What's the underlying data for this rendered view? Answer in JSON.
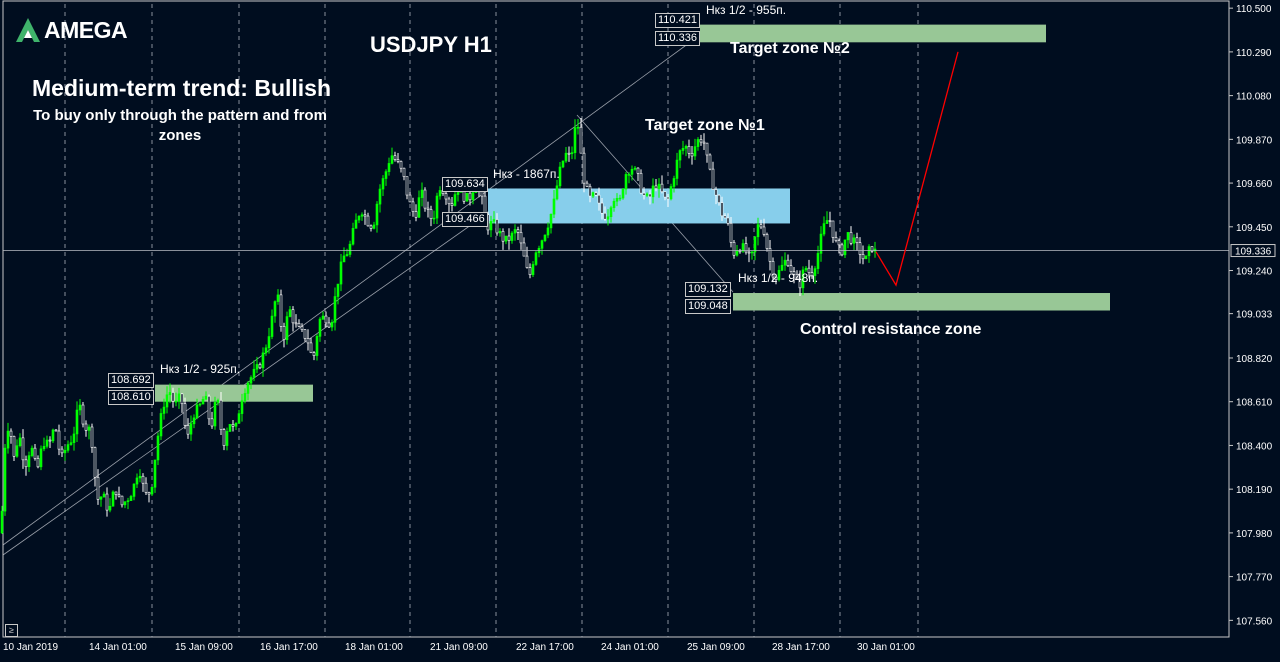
{
  "chart_data": {
    "type": "candlestick",
    "title": "USDJPY H1",
    "symbol": "USDJPY",
    "timeframe": "H1",
    "ylim": [
      107.48,
      110.52
    ],
    "y_ticks": [
      "110.500",
      "110.290",
      "110.080",
      "109.870",
      "109.660",
      "109.450",
      "109.240",
      "109.033",
      "108.820",
      "108.610",
      "108.400",
      "108.190",
      "107.980",
      "107.770",
      "107.560"
    ],
    "x_ticks": [
      "10 Jan 2019",
      "14 Jan 01:00",
      "15 Jan 09:00",
      "16 Jan 17:00",
      "18 Jan 01:00",
      "21 Jan 09:00",
      "22 Jan 17:00",
      "24 Jan 01:00",
      "25 Jan 09:00",
      "28 Jan 17:00",
      "30 Jan 01:00"
    ],
    "current_price": "109.336",
    "bull_color": "#00ff00",
    "bear_color": "#ffffff",
    "price_path": [
      [
        0,
        107.98
      ],
      [
        4,
        108.4
      ],
      [
        8,
        108.52
      ],
      [
        13,
        108.34
      ],
      [
        18,
        108.46
      ],
      [
        24,
        108.3
      ],
      [
        30,
        108.4
      ],
      [
        36,
        108.27
      ],
      [
        42,
        108.42
      ],
      [
        48,
        108.4
      ],
      [
        54,
        108.5
      ],
      [
        60,
        108.33
      ],
      [
        66,
        108.4
      ],
      [
        72,
        108.44
      ],
      [
        78,
        108.6
      ],
      [
        84,
        108.49
      ],
      [
        90,
        108.47
      ],
      [
        96,
        108.14
      ],
      [
        102,
        108.16
      ],
      [
        108,
        108.08
      ],
      [
        114,
        108.2
      ],
      [
        120,
        108.11
      ],
      [
        126,
        108.14
      ],
      [
        132,
        108.19
      ],
      [
        138,
        108.3
      ],
      [
        144,
        108.16
      ],
      [
        150,
        108.18
      ],
      [
        156,
        108.42
      ],
      [
        162,
        108.59
      ],
      [
        168,
        108.67
      ],
      [
        174,
        108.59
      ],
      [
        180,
        108.64
      ],
      [
        186,
        108.42
      ],
      [
        192,
        108.55
      ],
      [
        198,
        108.58
      ],
      [
        204,
        108.64
      ],
      [
        210,
        108.48
      ],
      [
        216,
        108.64
      ],
      [
        222,
        108.4
      ],
      [
        228,
        108.52
      ],
      [
        234,
        108.46
      ],
      [
        240,
        108.62
      ],
      [
        246,
        108.7
      ],
      [
        252,
        108.74
      ],
      [
        258,
        108.78
      ],
      [
        264,
        108.86
      ],
      [
        270,
        108.98
      ],
      [
        276,
        109.14
      ],
      [
        282,
        108.9
      ],
      [
        288,
        109.06
      ],
      [
        294,
        108.98
      ],
      [
        300,
        108.94
      ],
      [
        306,
        108.92
      ],
      [
        312,
        108.8
      ],
      [
        318,
        109.0
      ],
      [
        324,
        109.02
      ],
      [
        330,
        108.98
      ],
      [
        336,
        109.17
      ],
      [
        342,
        109.3
      ],
      [
        348,
        109.34
      ],
      [
        354,
        109.46
      ],
      [
        360,
        109.54
      ],
      [
        366,
        109.48
      ],
      [
        372,
        109.45
      ],
      [
        378,
        109.62
      ],
      [
        384,
        109.7
      ],
      [
        390,
        109.8
      ],
      [
        396,
        109.76
      ],
      [
        402,
        109.7
      ],
      [
        408,
        109.57
      ],
      [
        414,
        109.5
      ],
      [
        420,
        109.62
      ],
      [
        426,
        109.52
      ],
      [
        432,
        109.48
      ],
      [
        438,
        109.65
      ],
      [
        444,
        109.62
      ],
      [
        450,
        109.55
      ],
      [
        456,
        109.64
      ],
      [
        462,
        109.6
      ],
      [
        468,
        109.58
      ],
      [
        474,
        109.66
      ],
      [
        480,
        109.6
      ],
      [
        486,
        109.45
      ],
      [
        492,
        109.47
      ],
      [
        498,
        109.42
      ],
      [
        504,
        109.38
      ],
      [
        510,
        109.4
      ],
      [
        516,
        109.44
      ],
      [
        522,
        109.32
      ],
      [
        528,
        109.2
      ],
      [
        534,
        109.33
      ],
      [
        540,
        109.38
      ],
      [
        546,
        109.45
      ],
      [
        552,
        109.54
      ],
      [
        558,
        109.7
      ],
      [
        564,
        109.8
      ],
      [
        570,
        109.78
      ],
      [
        576,
        109.98
      ],
      [
        582,
        109.7
      ],
      [
        588,
        109.58
      ],
      [
        594,
        109.6
      ],
      [
        600,
        109.52
      ],
      [
        606,
        109.5
      ],
      [
        612,
        109.6
      ],
      [
        618,
        109.55
      ],
      [
        624,
        109.7
      ],
      [
        630,
        109.74
      ],
      [
        636,
        109.7
      ],
      [
        642,
        109.6
      ],
      [
        648,
        109.58
      ],
      [
        654,
        109.66
      ],
      [
        660,
        109.62
      ],
      [
        666,
        109.56
      ],
      [
        672,
        109.68
      ],
      [
        678,
        109.8
      ],
      [
        684,
        109.84
      ],
      [
        690,
        109.8
      ],
      [
        696,
        109.86
      ],
      [
        702,
        109.88
      ],
      [
        708,
        109.72
      ],
      [
        714,
        109.62
      ],
      [
        720,
        109.52
      ],
      [
        726,
        109.48
      ],
      [
        732,
        109.32
      ],
      [
        738,
        109.36
      ],
      [
        744,
        109.34
      ],
      [
        750,
        109.28
      ],
      [
        756,
        109.45
      ],
      [
        762,
        109.46
      ],
      [
        768,
        109.3
      ],
      [
        774,
        109.2
      ],
      [
        780,
        109.25
      ],
      [
        786,
        109.3
      ],
      [
        792,
        109.22
      ],
      [
        798,
        109.16
      ],
      [
        804,
        109.26
      ],
      [
        810,
        109.22
      ],
      [
        816,
        109.3
      ],
      [
        822,
        109.44
      ],
      [
        828,
        109.5
      ],
      [
        834,
        109.38
      ],
      [
        840,
        109.32
      ],
      [
        846,
        109.42
      ],
      [
        852,
        109.38
      ],
      [
        858,
        109.34
      ],
      [
        864,
        109.28
      ],
      [
        870,
        109.36
      ],
      [
        874,
        109.33
      ]
    ],
    "zones": [
      {
        "name": "target-zone-2",
        "upper": "110.421",
        "lower": "110.336",
        "note": "Нкз 1/2 - 955п.",
        "label": "Target zone №2",
        "color": "#98c796"
      },
      {
        "name": "target-zone-1",
        "upper": "109.634",
        "lower": "109.466",
        "note": "Нкз - 1867п.",
        "label": "Target zone №1",
        "color": "#87ceeb"
      },
      {
        "name": "control-zone",
        "upper": "109.132",
        "lower": "109.048",
        "note": "Нкз 1/2 - 948п.",
        "label": "Control resistance zone",
        "color": "#98c796"
      },
      {
        "name": "support-zone",
        "upper": "108.692",
        "lower": "108.610",
        "note": "Нкз 1/2 - 925п.",
        "label": "",
        "color": "#98c796"
      }
    ],
    "forecast": {
      "color": "#ff0000",
      "points": [
        [
          876,
          109.33
        ],
        [
          896,
          109.17
        ],
        [
          958,
          110.29
        ]
      ]
    }
  },
  "branding": {
    "logo_text": "AMEGA"
  },
  "annotations": {
    "trend_title": "Medium-term trend: Bullish",
    "trend_subtitle": "To buy only through the pattern  and from zones"
  },
  "corner_button": "≥"
}
